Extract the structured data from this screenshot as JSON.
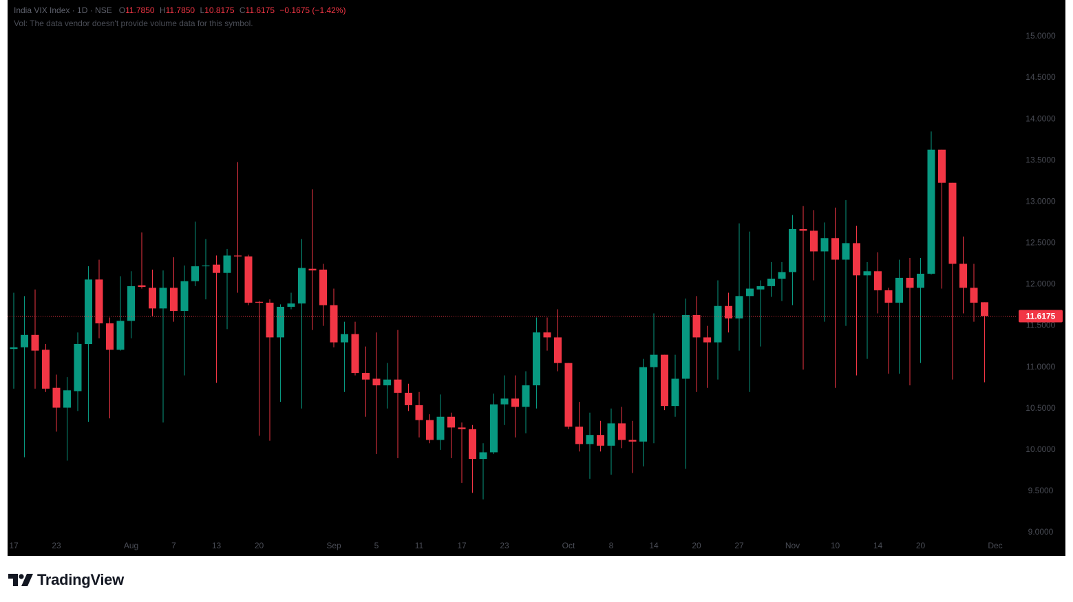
{
  "chart_data": {
    "type": "candlestick",
    "legend": {
      "symbol": "India VIX Index · 1D · NSE",
      "o_key": "O",
      "o": "11.7850",
      "h_key": "H",
      "h": "11.7850",
      "l_key": "L",
      "l": "10.8175",
      "c_key": "C",
      "c": "11.6175",
      "change": "−0.1675 (−1.42%)"
    },
    "volume_note": "Vol: The data vendor doesn't provide volume data for this symbol.",
    "brand": "TradingView",
    "up_color": "#089981",
    "down_color": "#f23645",
    "last_price": 11.6175,
    "ylim": [
      8.717,
      15.441
    ],
    "yticks": [
      {
        "value": 9.0,
        "label": "9.0000"
      },
      {
        "value": 9.5,
        "label": "9.5000"
      },
      {
        "value": 10.0,
        "label": "10.0000"
      },
      {
        "value": 10.5,
        "label": "10.5000"
      },
      {
        "value": 11.0,
        "label": "11.0000"
      },
      {
        "value": 11.5,
        "label": "11.5000"
      },
      {
        "value": 12.0,
        "label": "12.0000"
      },
      {
        "value": 12.5,
        "label": "12.5000"
      },
      {
        "value": 13.0,
        "label": "13.0000"
      },
      {
        "value": 13.5,
        "label": "13.5000"
      },
      {
        "value": 14.0,
        "label": "14.0000"
      },
      {
        "value": 14.5,
        "label": "14.5000"
      },
      {
        "value": 15.0,
        "label": "15.0000"
      }
    ],
    "grid": false,
    "categories": [
      "17",
      null,
      null,
      null,
      "23",
      null,
      null,
      null,
      null,
      null,
      null,
      "Aug",
      null,
      null,
      null,
      "7",
      null,
      null,
      null,
      "13",
      null,
      null,
      null,
      "20",
      null,
      null,
      null,
      null,
      null,
      null,
      "Sep",
      null,
      null,
      null,
      "5",
      null,
      null,
      null,
      "11",
      null,
      null,
      null,
      "17",
      null,
      null,
      null,
      "23",
      null,
      null,
      null,
      null,
      null,
      "Oct",
      null,
      null,
      null,
      "8",
      null,
      null,
      null,
      "14",
      null,
      null,
      null,
      "20",
      null,
      null,
      null,
      "27",
      null,
      null,
      null,
      null,
      "Nov",
      null,
      null,
      null,
      "10",
      null,
      null,
      null,
      "14",
      null,
      null,
      null,
      "20",
      null,
      null,
      null,
      null,
      null,
      null,
      "Dec"
    ],
    "open": [
      11.22,
      11.24,
      11.39,
      11.21,
      10.75,
      10.51,
      10.71,
      11.28,
      12.06,
      11.53,
      11.21,
      11.56,
      11.99,
      11.96,
      11.71,
      11.96,
      11.68,
      12.04,
      12.22,
      12.24,
      12.14,
      12.35,
      12.34,
      11.79,
      11.78,
      11.36,
      11.73,
      11.77,
      12.19,
      12.18,
      11.75,
      11.3,
      11.4,
      10.93,
      10.86,
      10.78,
      10.85,
      10.69,
      10.54,
      10.36,
      10.12,
      10.4,
      10.27,
      10.25,
      9.89,
      9.97,
      10.55,
      10.62,
      10.52,
      10.78,
      11.42,
      11.36,
      11.05,
      10.28,
      10.07,
      10.18,
      10.05,
      10.32,
      10.12,
      10.1,
      11.0,
      11.15,
      10.53,
      10.86,
      11.63,
      11.36,
      11.3,
      11.74,
      11.59,
      11.86,
      11.94,
      11.98,
      12.07,
      12.15,
      12.67,
      12.65,
      12.4,
      12.56,
      12.3,
      12.5,
      12.11,
      12.16,
      11.93,
      11.78,
      12.08,
      11.96,
      12.13,
      13.63,
      13.23,
      12.25,
      11.96,
      11.785,
      null
    ],
    "high": [
      11.9,
      11.86,
      11.94,
      11.28,
      10.91,
      10.88,
      11.42,
      12.22,
      12.3,
      11.6,
      12.1,
      12.16,
      12.63,
      12.18,
      12.17,
      12.33,
      12.23,
      12.76,
      12.55,
      12.35,
      12.43,
      13.48,
      12.36,
      11.8,
      11.82,
      11.76,
      11.9,
      12.55,
      13.15,
      12.25,
      11.95,
      11.55,
      11.55,
      11.25,
      11.42,
      11.05,
      11.45,
      10.8,
      10.7,
      10.43,
      10.67,
      10.45,
      10.33,
      10.3,
      10.08,
      10.68,
      10.9,
      10.9,
      10.95,
      11.6,
      11.6,
      11.7,
      11.05,
      10.58,
      10.45,
      10.35,
      10.5,
      10.52,
      10.35,
      11.1,
      11.65,
      11.15,
      11.15,
      11.83,
      11.86,
      11.5,
      12.05,
      11.9,
      12.74,
      12.64,
      12.05,
      12.27,
      12.27,
      12.84,
      12.95,
      12.9,
      12.75,
      12.93,
      13.02,
      12.71,
      12.27,
      12.39,
      11.96,
      12.3,
      12.32,
      12.32,
      13.85,
      13.63,
      13.23,
      12.58,
      12.25,
      11.785,
      null
    ],
    "low": [
      10.74,
      9.91,
      10.74,
      10.7,
      10.22,
      9.87,
      10.47,
      10.34,
      11.35,
      10.38,
      11.2,
      11.35,
      11.95,
      11.62,
      10.33,
      11.55,
      10.9,
      11.98,
      11.82,
      10.81,
      11.46,
      11.9,
      11.75,
      10.17,
      10.11,
      10.58,
      11.7,
      10.5,
      11.45,
      11.5,
      11.24,
      10.7,
      10.9,
      10.4,
      9.95,
      10.5,
      9.9,
      10.47,
      10.15,
      10.08,
      10.0,
      9.9,
      9.6,
      9.48,
      9.4,
      9.95,
      10.3,
      10.15,
      10.2,
      10.5,
      11.2,
      10.95,
      10.25,
      9.98,
      9.65,
      9.98,
      9.7,
      10.02,
      9.72,
      9.8,
      10.08,
      10.48,
      10.4,
      9.77,
      10.7,
      10.75,
      10.85,
      11.42,
      11.2,
      10.7,
      11.25,
      11.85,
      11.8,
      11.75,
      10.97,
      12.05,
      11.55,
      10.75,
      11.5,
      10.9,
      11.1,
      11.65,
      10.92,
      10.92,
      10.78,
      11.05,
      12.12,
      11.95,
      10.85,
      11.65,
      11.55,
      10.8175,
      null
    ],
    "close": [
      11.24,
      11.39,
      11.2,
      10.74,
      10.51,
      10.72,
      11.28,
      12.06,
      11.53,
      11.21,
      11.56,
      11.98,
      11.97,
      11.71,
      11.96,
      11.68,
      12.04,
      12.22,
      12.23,
      12.14,
      12.35,
      12.34,
      11.78,
      11.78,
      11.36,
      11.73,
      11.77,
      12.2,
      12.17,
      11.75,
      11.3,
      11.4,
      10.93,
      10.85,
      10.78,
      10.85,
      10.69,
      10.54,
      10.36,
      10.12,
      10.4,
      10.27,
      10.25,
      9.89,
      9.97,
      10.55,
      10.62,
      10.52,
      10.78,
      11.42,
      11.36,
      11.05,
      10.28,
      10.07,
      10.18,
      10.05,
      10.32,
      10.12,
      10.1,
      11.0,
      11.15,
      10.53,
      10.86,
      11.63,
      11.36,
      11.3,
      11.74,
      11.59,
      11.86,
      11.95,
      11.98,
      12.07,
      12.15,
      12.67,
      12.65,
      12.4,
      12.56,
      12.3,
      12.5,
      12.11,
      12.16,
      11.93,
      11.78,
      12.08,
      11.96,
      12.13,
      13.63,
      13.23,
      12.25,
      11.96,
      11.78,
      11.6175,
      null
    ]
  }
}
